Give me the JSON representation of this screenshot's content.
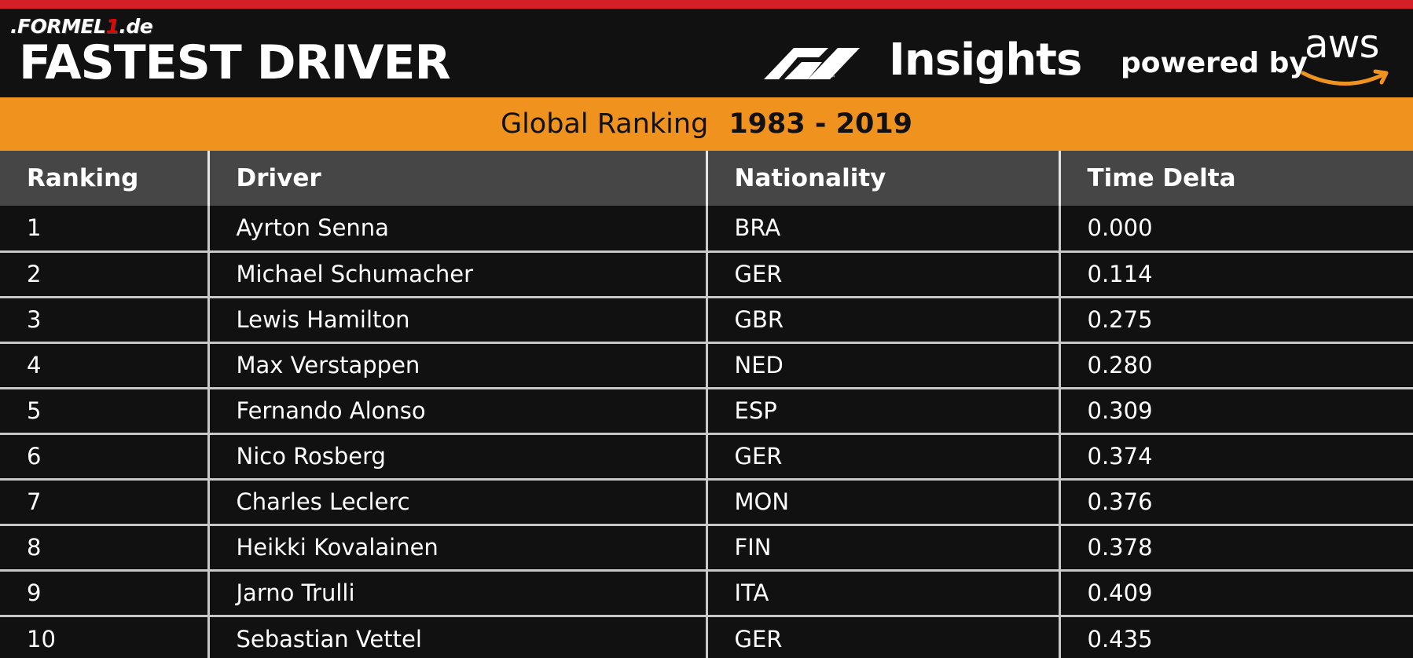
{
  "site_logo": {
    "prefix": ".FORMEL",
    "one": "1",
    "suffix": ".de"
  },
  "header": {
    "title": "FASTEST DRIVER",
    "insights": "Insights",
    "powered_by": "powered by",
    "aws": "aws"
  },
  "banner": {
    "label": "Global Ranking",
    "years": "1983 - 2019"
  },
  "colors": {
    "accent_red": "#d51f26",
    "accent_orange": "#f0921e",
    "aws_orange": "#f0921e"
  },
  "table": {
    "headers": [
      "Ranking",
      "Driver",
      "Nationality",
      "Time Delta"
    ],
    "rows": [
      {
        "rank": "1",
        "driver": "Ayrton Senna",
        "nationality": "BRA",
        "delta": "0.000"
      },
      {
        "rank": "2",
        "driver": "Michael Schumacher",
        "nationality": "GER",
        "delta": "0.114"
      },
      {
        "rank": "3",
        "driver": "Lewis Hamilton",
        "nationality": "GBR",
        "delta": "0.275"
      },
      {
        "rank": "4",
        "driver": "Max Verstappen",
        "nationality": "NED",
        "delta": "0.280"
      },
      {
        "rank": "5",
        "driver": "Fernando Alonso",
        "nationality": "ESP",
        "delta": "0.309"
      },
      {
        "rank": "6",
        "driver": "Nico Rosberg",
        "nationality": "GER",
        "delta": "0.374"
      },
      {
        "rank": "7",
        "driver": "Charles Leclerc",
        "nationality": "MON",
        "delta": "0.376"
      },
      {
        "rank": "8",
        "driver": "Heikki Kovalainen",
        "nationality": "FIN",
        "delta": "0.378"
      },
      {
        "rank": "9",
        "driver": "Jarno Trulli",
        "nationality": "ITA",
        "delta": "0.409"
      },
      {
        "rank": "10",
        "driver": "Sebastian Vettel",
        "nationality": "GER",
        "delta": "0.435"
      }
    ]
  }
}
